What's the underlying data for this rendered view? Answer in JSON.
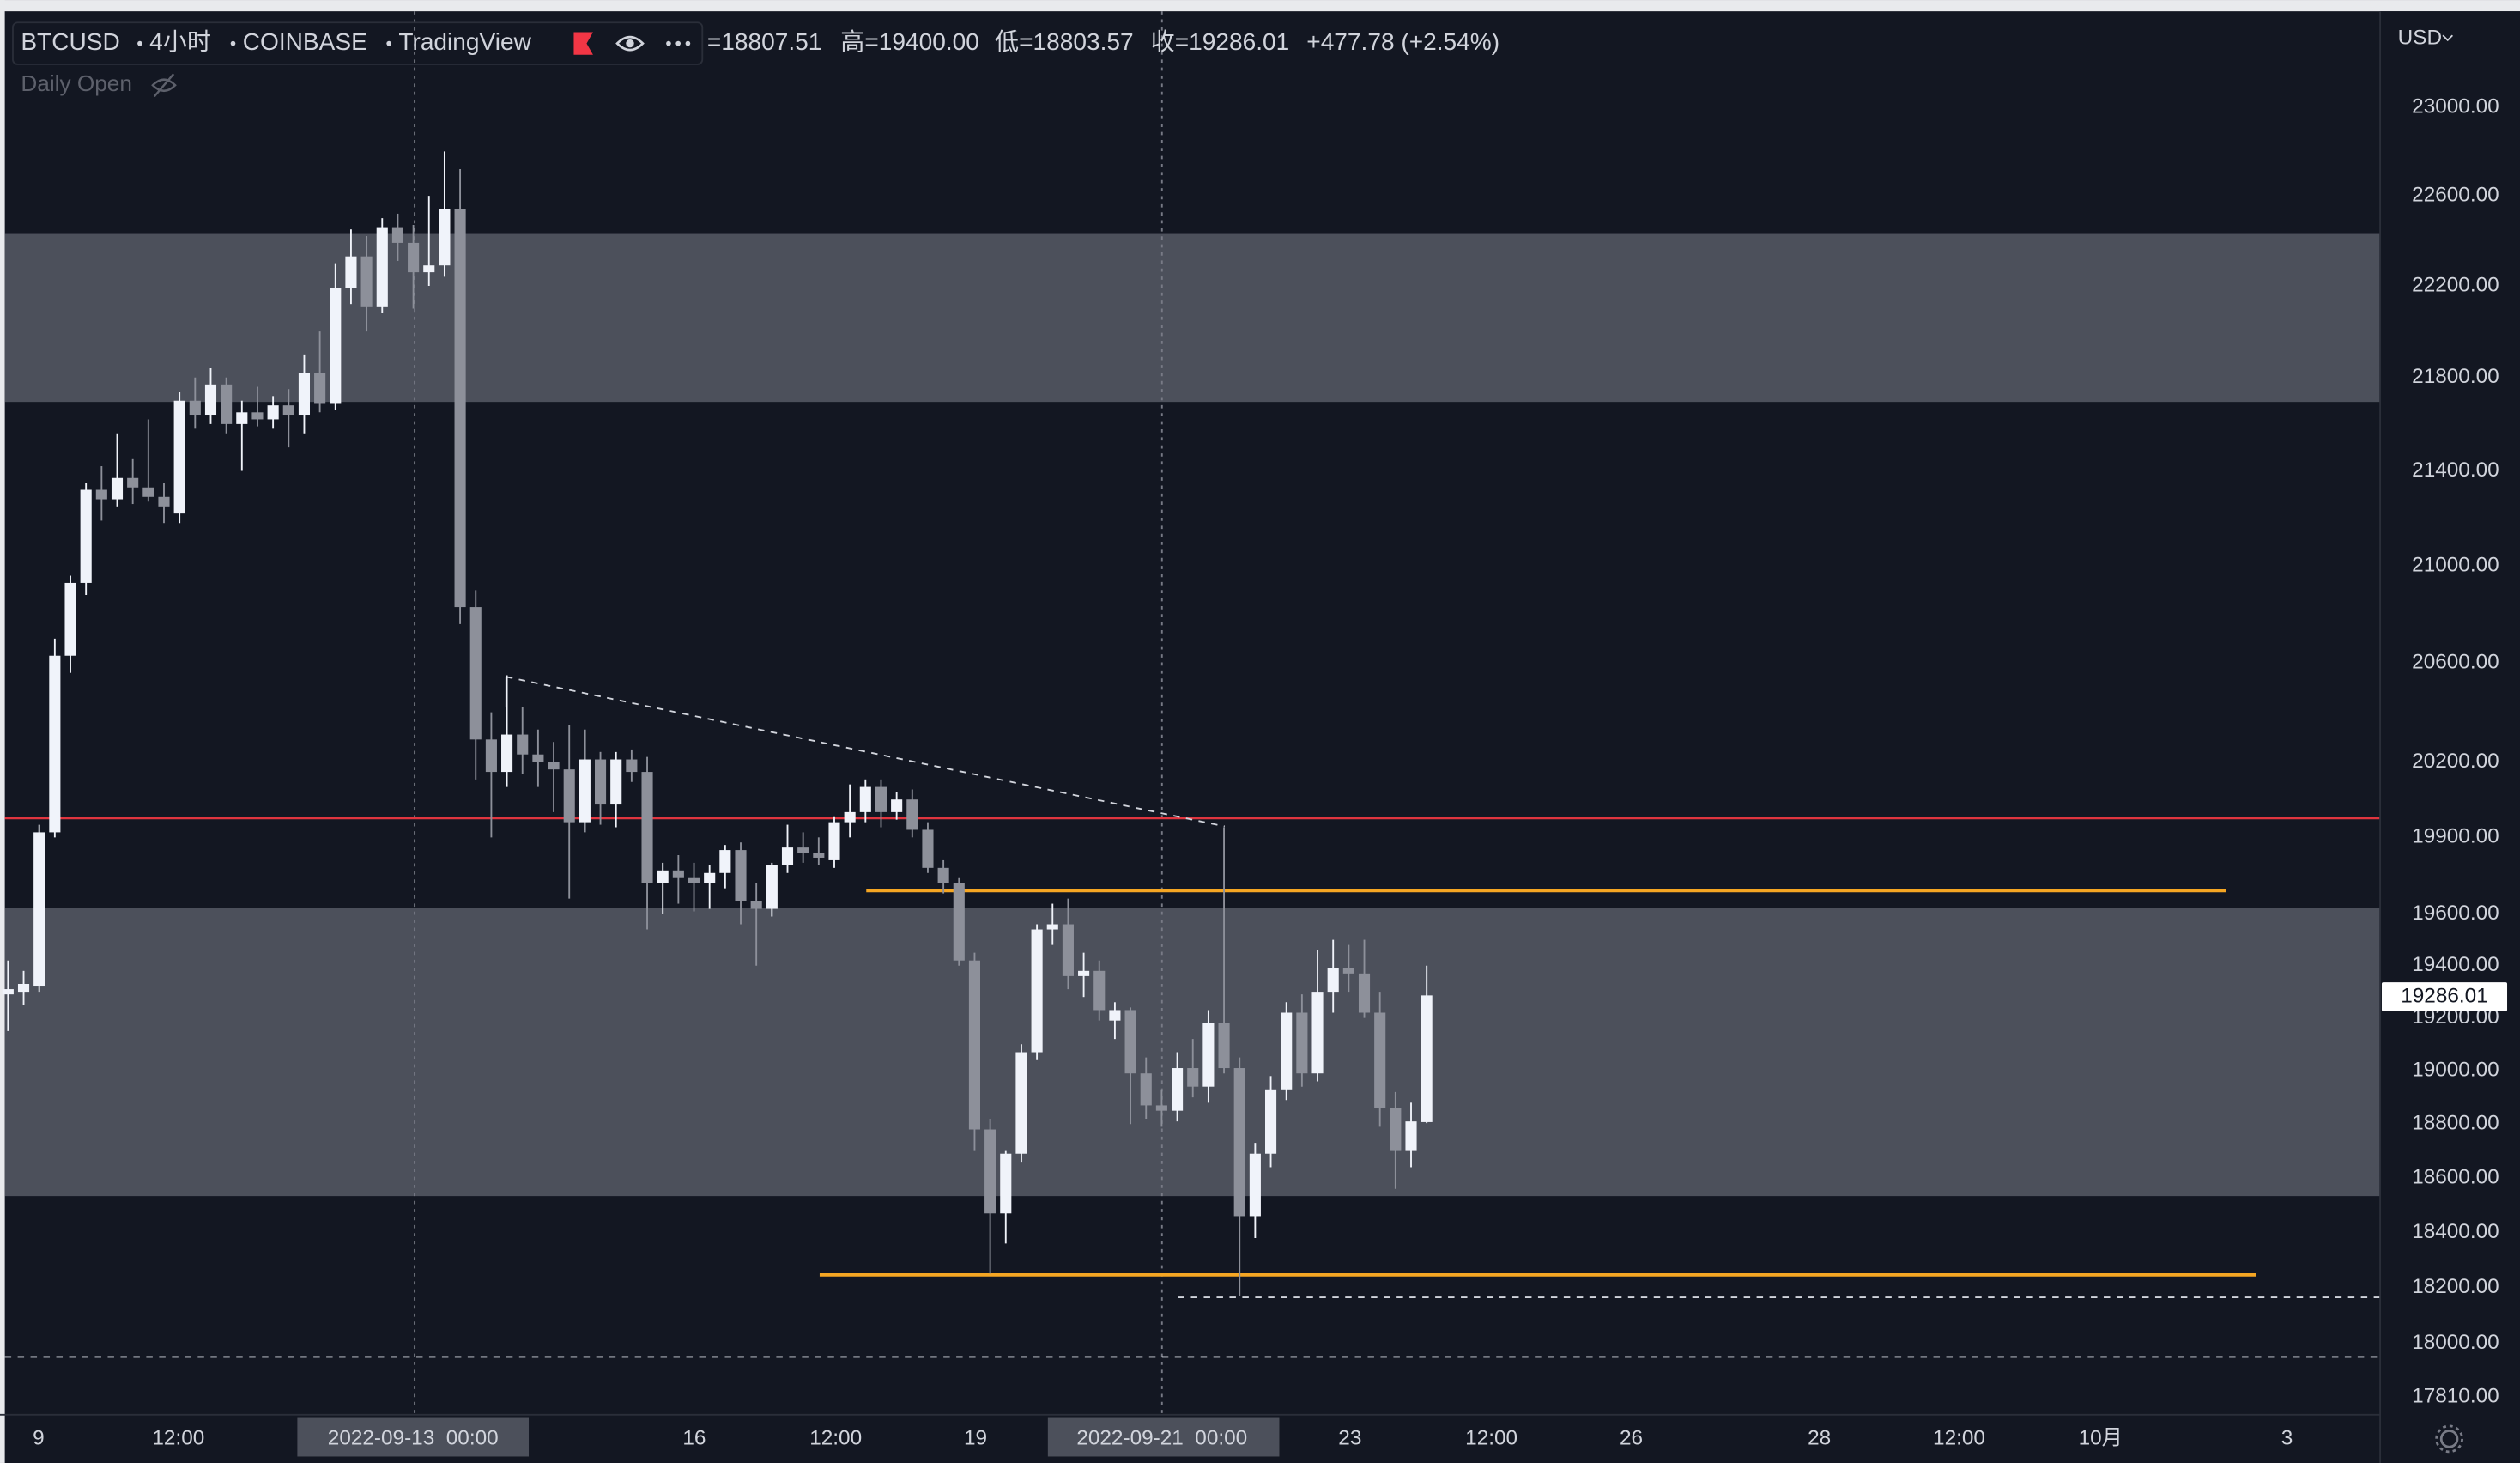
{
  "header": {
    "symbol": "BTCUSD",
    "interval": "4小时",
    "exchange": "COINBASE",
    "source": "TradingView",
    "ohlc": [
      "=18807.51",
      "高=19400.00",
      "低=18803.57",
      "收=19286.01",
      "+477.78 (+2.54%)"
    ],
    "indicator": "Daily Open"
  },
  "currency": "USD",
  "price_tag": "19286.01",
  "x_labels": [
    "9",
    "12:00",
    "16",
    "12:00",
    "19",
    "23",
    "12:00",
    "26",
    "28",
    "12:00",
    "10月",
    "3"
  ],
  "crosshair_labels": [
    "2022-09-13  00:00",
    "2022-09-21  00:00"
  ],
  "chart_data": {
    "type": "candlestick",
    "log": true,
    "ylim": [
      17747,
      23435
    ],
    "yticks": [
      {
        "value": 23000,
        "label": "23000.00"
      },
      {
        "value": 22600,
        "label": "22600.00"
      },
      {
        "value": 22200,
        "label": "22200.00"
      },
      {
        "value": 21800,
        "label": "21800.00"
      },
      {
        "value": 21400,
        "label": "21400.00"
      },
      {
        "value": 21000,
        "label": "21000.00"
      },
      {
        "value": 20600,
        "label": "20600.00"
      },
      {
        "value": 20200,
        "label": "20200.00"
      },
      {
        "value": 19900,
        "label": "19900.00"
      },
      {
        "value": 19600,
        "label": "19600.00"
      },
      {
        "value": 19400,
        "label": "19400.00"
      },
      {
        "value": 19200,
        "label": "19200.00"
      },
      {
        "value": 19000,
        "label": "19000.00"
      },
      {
        "value": 18800,
        "label": "18800.00"
      },
      {
        "value": 18600,
        "label": "18600.00"
      },
      {
        "value": 18400,
        "label": "18400.00"
      },
      {
        "value": 18200,
        "label": "18200.00"
      },
      {
        "value": 18000,
        "label": "18000.00"
      },
      {
        "value": 17810,
        "label": "17810.00"
      }
    ],
    "up_color": "#f0f3fa",
    "down_color": "#8d909a",
    "open": [
      19290,
      19300,
      19320,
      19920,
      20630,
      20930,
      21320,
      21280,
      21370,
      21330,
      21290,
      21220,
      21700,
      21640,
      21770,
      21600,
      21650,
      21620,
      21680,
      21640,
      21820,
      21690,
      22190,
      22330,
      22110,
      22460,
      22390,
      22260,
      22290,
      22540,
      20830,
      20290,
      20160,
      20310,
      20230,
      20200,
      20170,
      19960,
      20210,
      20030,
      20210,
      20160,
      19720,
      19770,
      19740,
      19720,
      19760,
      19850,
      19650,
      19620,
      19790,
      19860,
      19840,
      19810,
      19960,
      20000,
      20100,
      20000,
      20050,
      19930,
      19780,
      19720,
      19420,
      18780,
      18470,
      18690,
      19070,
      19540,
      19560,
      19360,
      19380,
      19190,
      19230,
      18990,
      18870,
      18850,
      19010,
      18940,
      19180,
      19010,
      18460,
      18690,
      18930,
      19220,
      18990,
      19300,
      19390,
      19370,
      19220,
      18860,
      18700,
      18807.51
    ],
    "high": [
      19420,
      19380,
      19950,
      20700,
      20960,
      21350,
      21420,
      21560,
      21450,
      21620,
      21350,
      21740,
      21800,
      21840,
      21800,
      21700,
      21760,
      21720,
      21750,
      21900,
      22000,
      22300,
      22450,
      22420,
      22500,
      22520,
      22470,
      22600,
      22800,
      22720,
      20900,
      20400,
      20550,
      20420,
      20330,
      20280,
      20350,
      20330,
      20240,
      20240,
      20250,
      20220,
      19800,
      19830,
      19800,
      19790,
      19870,
      19880,
      19720,
      19800,
      19950,
      19920,
      19900,
      19980,
      20110,
      20130,
      20130,
      20080,
      20090,
      19960,
      19810,
      19740,
      19450,
      18820,
      18700,
      19100,
      19560,
      19640,
      19660,
      19450,
      19420,
      19260,
      19240,
      19050,
      18930,
      19070,
      19120,
      19230,
      19940,
      19050,
      18730,
      18980,
      19260,
      19290,
      19460,
      19500,
      19480,
      19500,
      19300,
      18920,
      18880,
      19400
    ],
    "low": [
      19150,
      19250,
      19300,
      19900,
      20560,
      20880,
      21190,
      21250,
      21260,
      21270,
      21180,
      21180,
      21580,
      21600,
      21560,
      21400,
      21590,
      21580,
      21500,
      21560,
      21650,
      21660,
      22120,
      22000,
      22080,
      22310,
      22100,
      22200,
      22240,
      20760,
      20130,
      19900,
      20100,
      20150,
      20100,
      20000,
      19660,
      19920,
      19950,
      19940,
      20120,
      19540,
      19600,
      19640,
      19610,
      19620,
      19700,
      19560,
      19400,
      19590,
      19760,
      19800,
      19790,
      19780,
      19900,
      19960,
      19940,
      19970,
      19900,
      19760,
      19680,
      19400,
      18700,
      18250,
      18360,
      18660,
      19040,
      19480,
      19310,
      19280,
      19190,
      19120,
      18800,
      18820,
      18790,
      18810,
      18900,
      18880,
      18990,
      18170,
      18380,
      18640,
      18890,
      18940,
      18960,
      19220,
      19300,
      19200,
      18790,
      18560,
      18640,
      18803.57
    ],
    "close": [
      19310,
      19330,
      19920,
      20630,
      20930,
      21320,
      21280,
      21370,
      21330,
      21290,
      21250,
      21700,
      21640,
      21770,
      21600,
      21650,
      21620,
      21680,
      21640,
      21820,
      21690,
      22190,
      22330,
      22110,
      22460,
      22390,
      22260,
      22290,
      22540,
      20830,
      20290,
      20160,
      20310,
      20230,
      20200,
      20170,
      19960,
      20210,
      20030,
      20210,
      20160,
      19720,
      19770,
      19740,
      19720,
      19760,
      19850,
      19650,
      19620,
      19790,
      19860,
      19840,
      19820,
      19960,
      20000,
      20100,
      20000,
      20050,
      19930,
      19780,
      19720,
      19420,
      18780,
      18470,
      18690,
      19070,
      19540,
      19560,
      19360,
      19380,
      19230,
      19230,
      18990,
      18870,
      18850,
      19010,
      18940,
      19180,
      19010,
      18460,
      18690,
      18930,
      19220,
      18990,
      19300,
      19390,
      19370,
      19220,
      18860,
      18700,
      18810,
      19286.01
    ]
  }
}
